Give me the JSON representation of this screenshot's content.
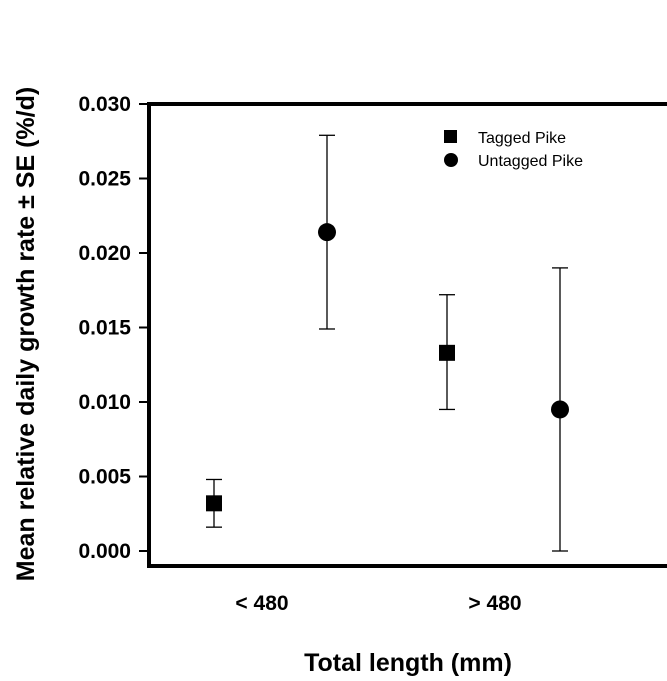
{
  "chart_data": {
    "type": "scatter",
    "xlabel": "Total length (mm)",
    "ylabel": "Mean relative daily growth rate ± SE (%/d)",
    "categories": [
      "< 480",
      "> 480"
    ],
    "ylim": [
      0,
      0.03
    ],
    "yticks": [
      "0.000",
      "0.005",
      "0.010",
      "0.015",
      "0.020",
      "0.025",
      "0.030"
    ],
    "yticks_values": [
      0,
      0.005,
      0.01,
      0.015,
      0.02,
      0.025,
      0.03
    ],
    "grid": false,
    "legend_position": "top-right",
    "series": [
      {
        "name": "Tagged Pike",
        "marker": "square",
        "values": [
          0.0032,
          0.0133
        ],
        "se_low": [
          0.0016,
          0.0095
        ],
        "se_high": [
          0.0048,
          0.0172
        ]
      },
      {
        "name": "Untagged Pike",
        "marker": "circle",
        "values": [
          0.0214,
          0.0095
        ],
        "se_low": [
          0.0149,
          0.0
        ],
        "se_high": [
          0.0279,
          0.019
        ]
      }
    ]
  },
  "colors": {
    "marker": "#000000",
    "axis": "#000000"
  }
}
